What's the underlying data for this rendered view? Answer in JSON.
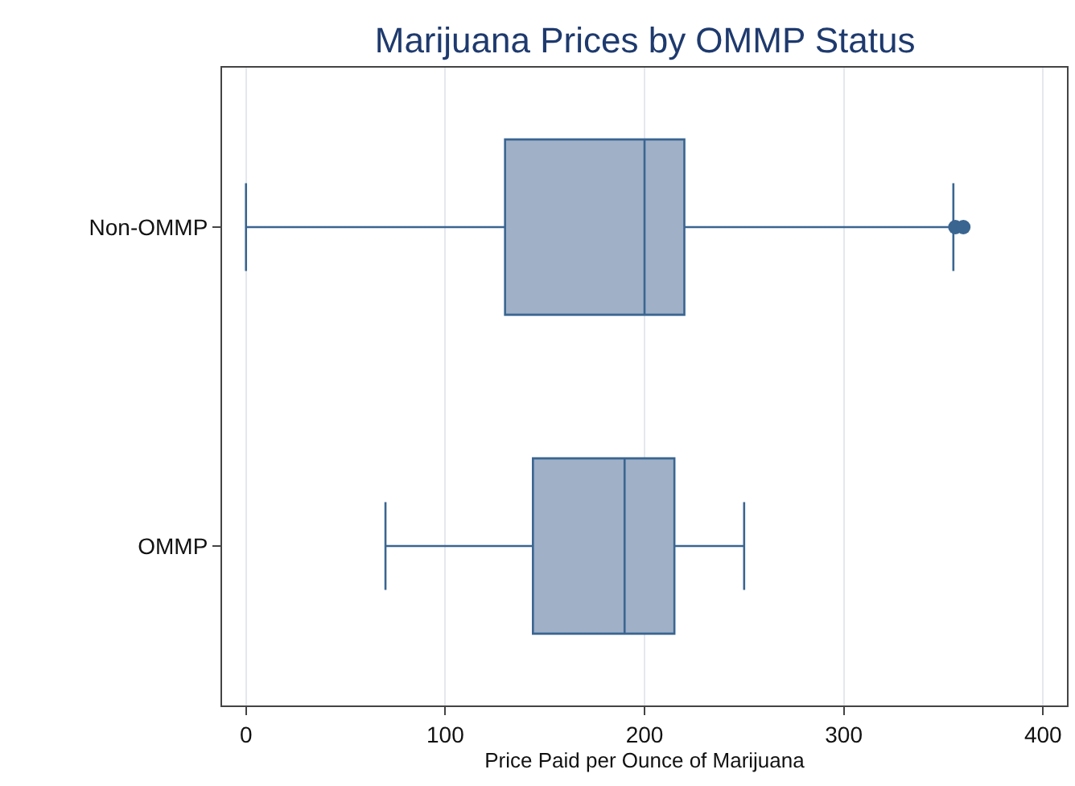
{
  "chart_data": {
    "type": "box",
    "orientation": "horizontal",
    "title": "Marijuana Prices by OMMP Status",
    "xlabel": "Price Paid per Ounce of Marijuana",
    "categories": [
      "Non-OMMP",
      "OMMP"
    ],
    "boxes": [
      {
        "low": 0,
        "q1": 130,
        "median": 200,
        "q3": 220,
        "high": 355,
        "outliers": [
          356,
          360
        ]
      },
      {
        "low": 70,
        "q1": 144,
        "median": 190,
        "q3": 215,
        "high": 250
      }
    ],
    "color": "#9fb0c7",
    "xlim": [
      -12,
      412
    ],
    "xticks": [
      0,
      100,
      200,
      300,
      400
    ],
    "grid": "x"
  }
}
